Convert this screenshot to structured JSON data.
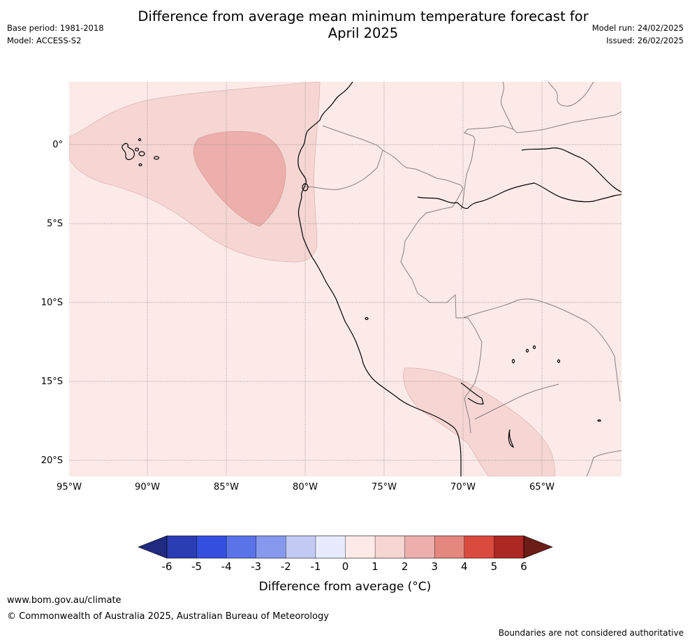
{
  "title_line1": "Difference from average mean minimum temperature forecast for",
  "title_line2": "April 2025",
  "base_period": "Base period: 1981-2018",
  "model": "Model: ACCESS-S2",
  "model_run": "Model run: 24/02/2025",
  "issued": "Issued: 26/02/2025",
  "map": {
    "lat_labels": [
      "0°",
      "5°S",
      "10°S",
      "15°S",
      "20°S"
    ],
    "lon_labels": [
      "95°W",
      "90°W",
      "85°W",
      "80°W",
      "75°W",
      "70°W",
      "65°W"
    ],
    "background_anomaly_class": "0 to 1",
    "colors": {
      "anom_0_1": "#fbeae8",
      "anom_1_2": "#f5d6d3",
      "anom_2_3": "#ecafab",
      "coast": "#000000",
      "border": "#8a7f80",
      "grid": "#7f7f7f"
    }
  },
  "colorbar": {
    "ticks": [
      "-6",
      "-5",
      "-4",
      "-3",
      "-2",
      "-1",
      "0",
      "1",
      "2",
      "3",
      "4",
      "5",
      "6"
    ],
    "colors": [
      "#1f2a80",
      "#2a3db3",
      "#344fe0",
      "#5a73e6",
      "#8799ec",
      "#c2caf4",
      "#e8ebfb",
      "#fbeae8",
      "#f5d6d3",
      "#ecafab",
      "#e4877f",
      "#da4a3e",
      "#ad2823",
      "#6d1d17"
    ],
    "label": "Difference from average (°C)"
  },
  "footer": {
    "url": "www.bom.gov.au/climate",
    "copyright": "© Commonwealth of Australia 2025, Australian Bureau of Meteorology",
    "disclaimer": "Boundaries are not considered authoritative"
  }
}
